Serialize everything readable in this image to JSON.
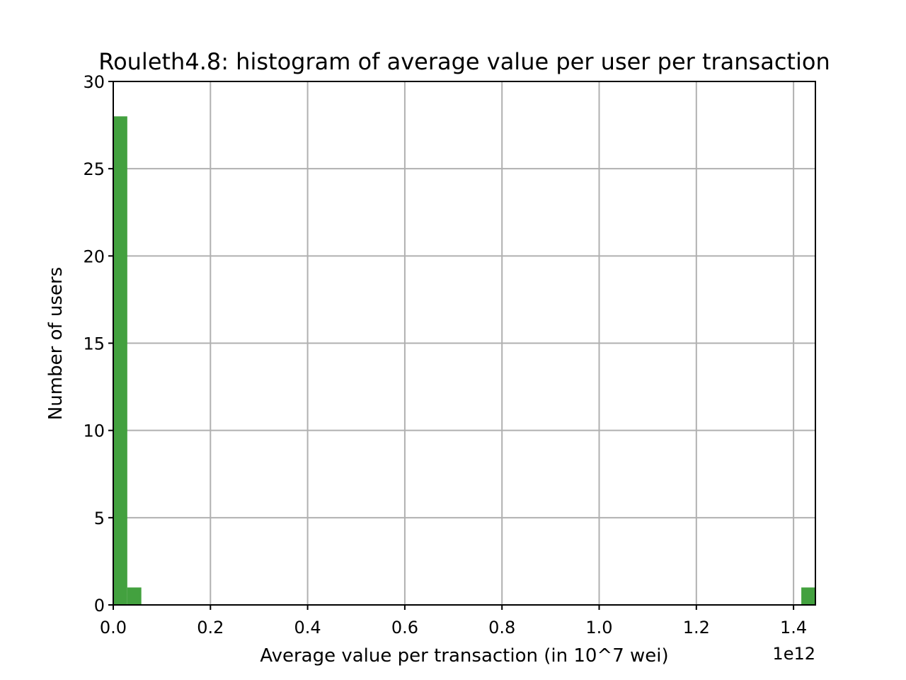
{
  "chart_data": {
    "type": "bar",
    "title": "Rouleth4.8: histogram of average value per user per transaction",
    "xlabel": "Average value per transaction (in 10^7 wei)",
    "ylabel": "Number of users",
    "x_offset_text": "1e12",
    "xlim": [
      0.0,
      1.445
    ],
    "ylim": [
      0,
      30
    ],
    "x_ticks": [
      0.0,
      0.2,
      0.4,
      0.6,
      0.8,
      1.0,
      1.2,
      1.4
    ],
    "x_tick_labels": [
      "0.0",
      "0.2",
      "0.4",
      "0.6",
      "0.8",
      "1.0",
      "1.2",
      "1.4"
    ],
    "y_ticks": [
      0,
      5,
      10,
      15,
      20,
      25,
      30
    ],
    "y_tick_labels": [
      "0",
      "5",
      "10",
      "15",
      "20",
      "25",
      "30"
    ],
    "grid": true,
    "bar_color": "#43a13f",
    "bins": [
      {
        "x_start": 0.0,
        "x_end": 0.0289,
        "count": 28
      },
      {
        "x_start": 0.0289,
        "x_end": 0.0578,
        "count": 1
      },
      {
        "x_start": 1.416,
        "x_end": 1.445,
        "count": 1
      }
    ]
  }
}
